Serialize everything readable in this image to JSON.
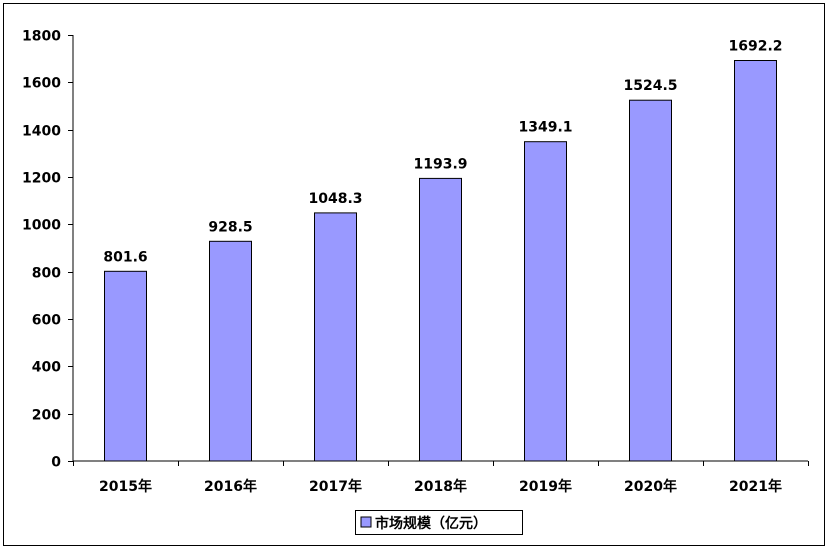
{
  "chart_data": {
    "type": "bar",
    "title": "",
    "xlabel": "",
    "ylabel": "",
    "categories": [
      "2015年",
      "2016年",
      "2017年",
      "2018年",
      "2019年",
      "2020年",
      "2021年"
    ],
    "series": [
      {
        "name": "市场规模（亿元）",
        "values": [
          801.6,
          928.5,
          1048.3,
          1193.9,
          1349.1,
          1524.5,
          1692.2
        ],
        "labels": [
          "801.6",
          "928.5",
          "1048.3",
          "1193.9",
          "1349.1",
          "1524.5",
          "1692.2"
        ],
        "color": "#9999ff"
      }
    ],
    "ylim": [
      0,
      1800
    ],
    "yticks": [
      0,
      200,
      400,
      600,
      800,
      1000,
      1200,
      1400,
      1600,
      1800
    ],
    "grid": false,
    "legend": "bottom-center",
    "bar_edge_color": "#000000",
    "frame_color": "#000000"
  }
}
